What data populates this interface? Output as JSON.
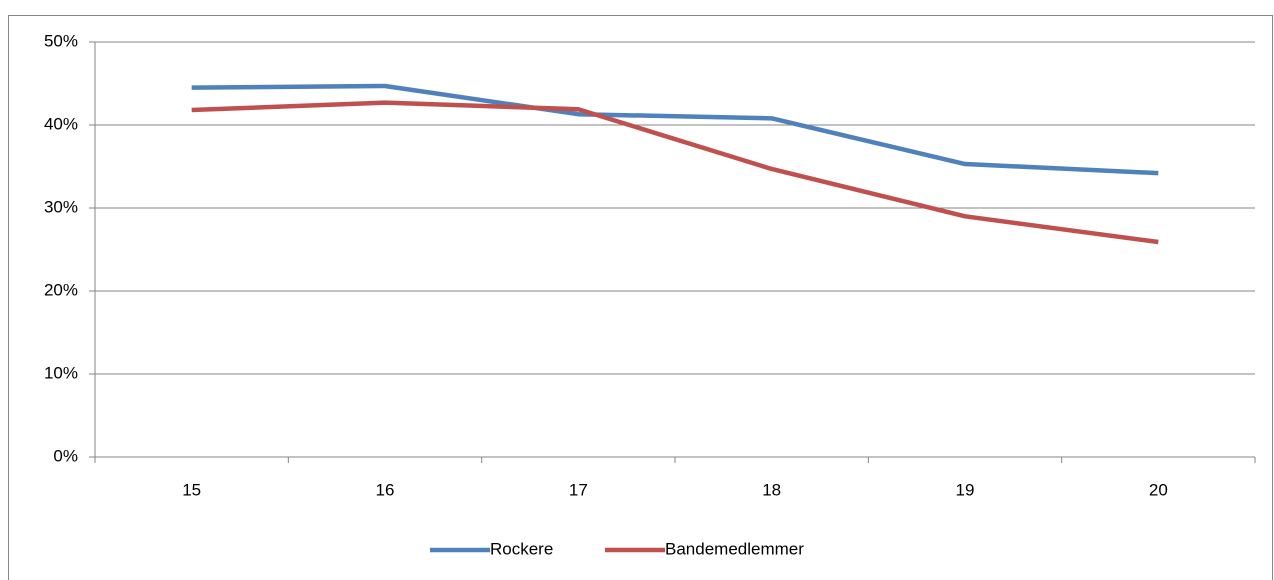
{
  "chart_data": {
    "type": "line",
    "categories": [
      "15",
      "16",
      "17",
      "18",
      "19",
      "20"
    ],
    "series": [
      {
        "name": "Rockere",
        "color": "#4f81bd",
        "values": [
          44.5,
          44.7,
          41.3,
          40.8,
          35.3,
          34.2
        ]
      },
      {
        "name": "Bandemedlemmer",
        "color": "#c0504d",
        "values": [
          41.8,
          42.7,
          41.9,
          34.7,
          29.0,
          25.9
        ]
      }
    ],
    "ylim": [
      0,
      50
    ],
    "yticks": [
      {
        "value": 0,
        "label": "0%"
      },
      {
        "value": 10,
        "label": "10%"
      },
      {
        "value": 20,
        "label": "20%"
      },
      {
        "value": 30,
        "label": "30%"
      },
      {
        "value": 40,
        "label": "40%"
      },
      {
        "value": 50,
        "label": "50%"
      }
    ],
    "grid": true,
    "legend": "bottom"
  }
}
